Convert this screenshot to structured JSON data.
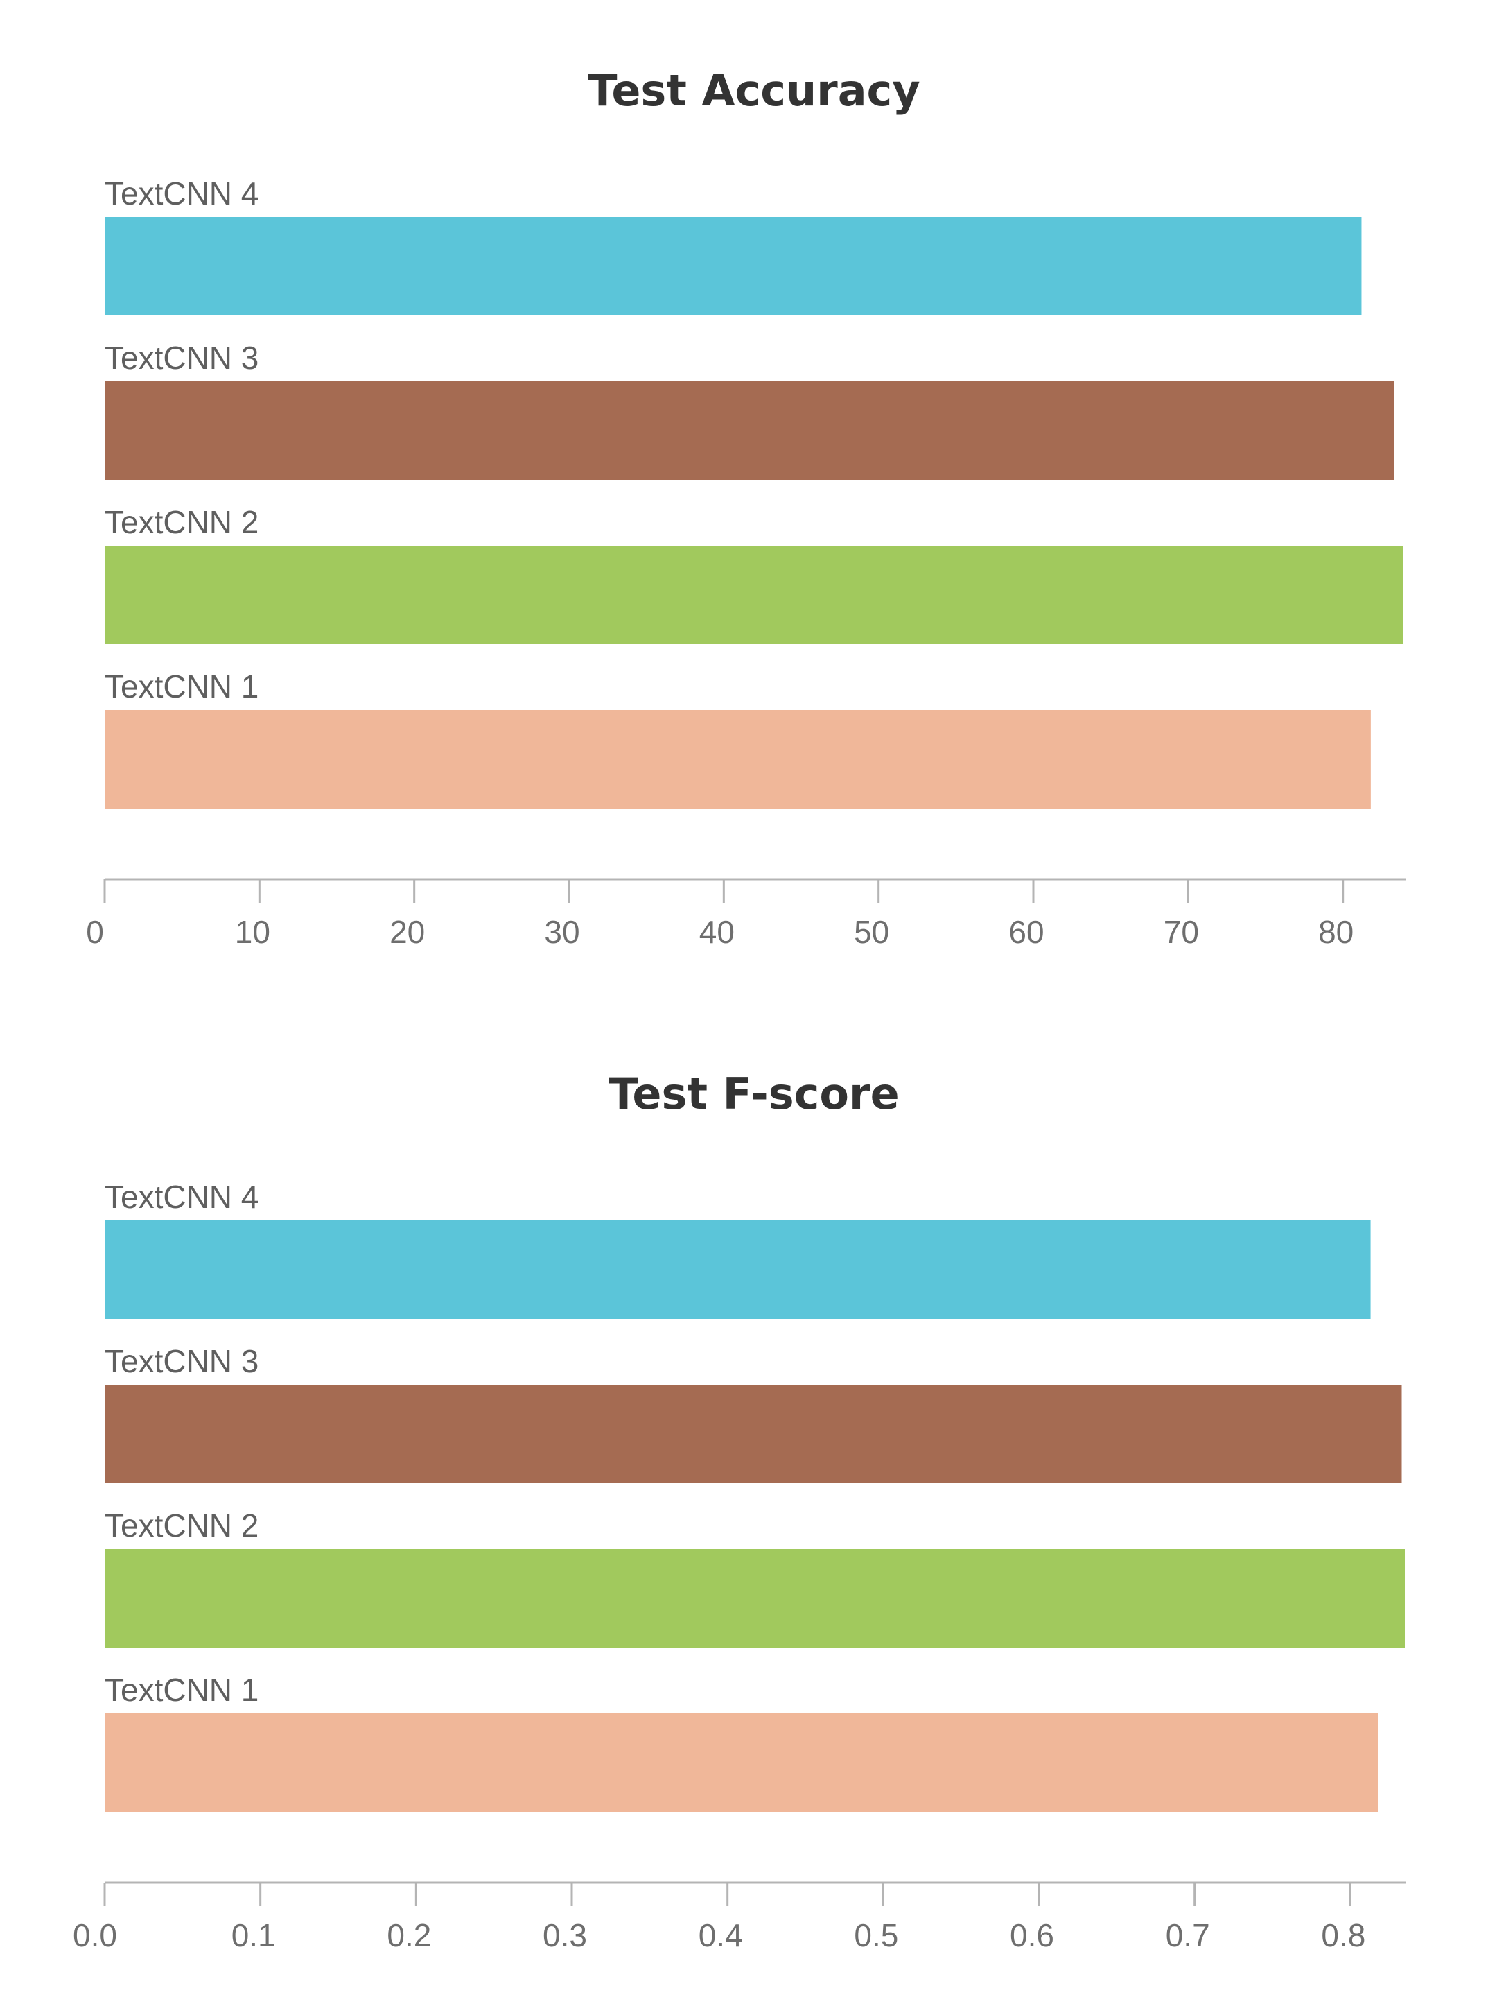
{
  "chart_data": [
    {
      "type": "bar",
      "orientation": "horizontal",
      "title": "Test Accuracy",
      "xlabel": "",
      "ylabel": "",
      "categories": [
        "TextCNN 4",
        "TextCNN 3",
        "TextCNN 2",
        "TextCNN 1"
      ],
      "values": [
        81.2,
        83.3,
        83.9,
        81.8
      ],
      "colors": [
        "#5bc5d9",
        "#a56b52",
        "#a1c95d",
        "#f0b799"
      ],
      "xlim": [
        0,
        84
      ],
      "ticks": [
        0,
        10,
        20,
        30,
        40,
        50,
        60,
        70,
        80
      ],
      "tick_labels": [
        "0",
        "10",
        "20",
        "30",
        "40",
        "50",
        "60",
        "70",
        "80"
      ],
      "grid": false,
      "legend": "none"
    },
    {
      "type": "bar",
      "orientation": "horizontal",
      "title": "Test F-score",
      "xlabel": "",
      "ylabel": "",
      "categories": [
        "TextCNN 4",
        "TextCNN 3",
        "TextCNN 2",
        "TextCNN 1"
      ],
      "values": [
        0.813,
        0.833,
        0.835,
        0.818
      ],
      "colors": [
        "#5bc5d9",
        "#a56b52",
        "#a1c95d",
        "#f0b799"
      ],
      "xlim": [
        0,
        0.835
      ],
      "ticks": [
        0,
        0.1,
        0.2,
        0.3,
        0.4,
        0.5,
        0.6,
        0.7,
        0.8
      ],
      "tick_labels": [
        "0.0",
        "0.1",
        "0.2",
        "0.3",
        "0.4",
        "0.5",
        "0.6",
        "0.7",
        "0.8"
      ],
      "grid": false,
      "legend": "none"
    }
  ]
}
